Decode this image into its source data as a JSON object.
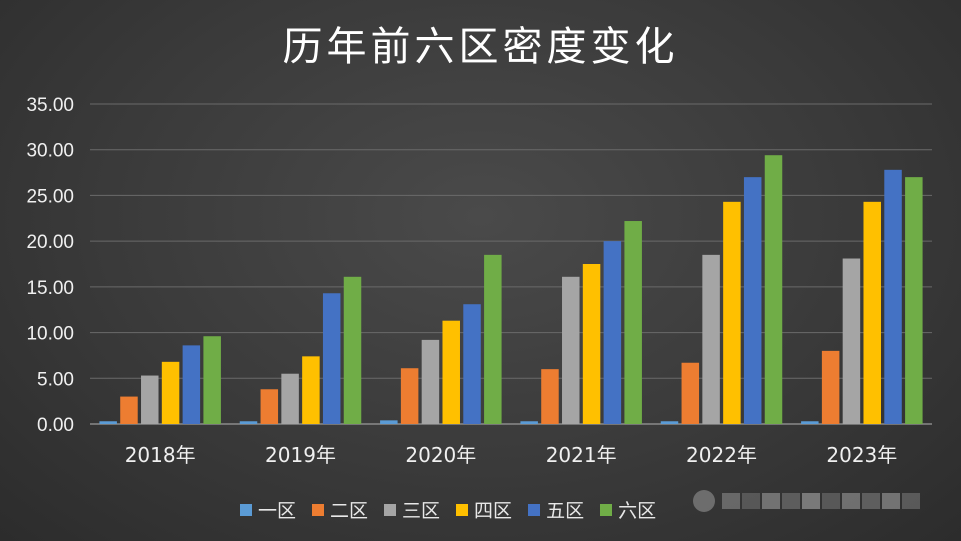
{
  "chart_data": {
    "type": "bar",
    "title": "历年前六区密度变化",
    "categories": [
      "2018年",
      "2019年",
      "2020年",
      "2021年",
      "2022年",
      "2023年"
    ],
    "ylim": [
      0,
      35
    ],
    "yticks": [
      "0.00",
      "5.00",
      "10.00",
      "15.00",
      "20.00",
      "25.00",
      "30.00",
      "35.00"
    ],
    "grid": true,
    "legend_position": "bottom",
    "series": [
      {
        "name": "一区",
        "color": "#5b9bd5",
        "values": [
          0.3,
          0.3,
          0.4,
          0.3,
          0.3,
          0.3
        ]
      },
      {
        "name": "二区",
        "color": "#ed7d31",
        "values": [
          3.0,
          3.8,
          6.1,
          6.0,
          6.7,
          8.0
        ]
      },
      {
        "name": "三区",
        "color": "#a5a5a5",
        "values": [
          5.3,
          5.5,
          9.2,
          16.1,
          18.5,
          18.1
        ]
      },
      {
        "name": "四区",
        "color": "#ffc000",
        "values": [
          6.8,
          7.4,
          11.3,
          17.5,
          24.3,
          24.3
        ]
      },
      {
        "name": "五区",
        "color": "#4472c4",
        "values": [
          8.6,
          14.3,
          13.1,
          20.0,
          27.0,
          27.8
        ]
      },
      {
        "name": "六区",
        "color": "#70ad47",
        "values": [
          9.6,
          16.1,
          18.5,
          22.2,
          29.4,
          27.0
        ]
      }
    ]
  }
}
